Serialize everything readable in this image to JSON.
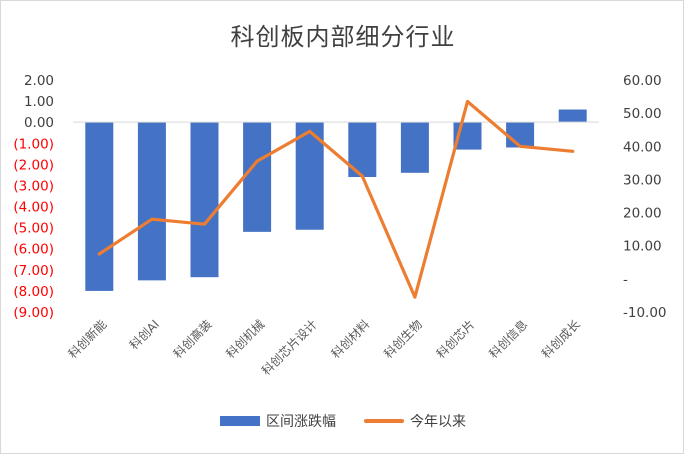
{
  "chart_data": {
    "type": "bar",
    "title": "科创板内部细分行业",
    "categories": [
      "科创新能",
      "科创AI",
      "科创高装",
      "科创机械",
      "科创芯片设计",
      "科创材料",
      "科创生物",
      "科创芯片",
      "科创信息",
      "科创成长"
    ],
    "series": [
      {
        "name": "区间涨跌幅",
        "type": "bar",
        "axis": "left",
        "color": "#4472c4",
        "values": [
          -8.0,
          -7.5,
          -7.35,
          -5.2,
          -5.1,
          -2.6,
          -2.4,
          -1.3,
          -1.2,
          0.6
        ]
      },
      {
        "name": "今年以来",
        "type": "line",
        "axis": "right",
        "color": "#ed7d31",
        "values": [
          7.5,
          18.0,
          16.5,
          35.5,
          44.5,
          31.0,
          -5.5,
          53.5,
          40.0,
          38.5
        ]
      }
    ],
    "y_left": {
      "ylim": [
        -9,
        2
      ],
      "ticks": [
        2,
        1,
        0,
        -1,
        -2,
        -3,
        -4,
        -5,
        -6,
        -7,
        -8,
        -9
      ],
      "tick_labels": [
        "2.00",
        "1.00",
        "0.00",
        "(1.00)",
        "(2.00)",
        "(3.00)",
        "(4.00)",
        "(5.00)",
        "(6.00)",
        "(7.00)",
        "(8.00)",
        "(9.00)"
      ],
      "negative_color": "#ff0000",
      "positive_color": "#404040"
    },
    "y_right": {
      "ylim": [
        -10,
        60
      ],
      "ticks": [
        60,
        50,
        40,
        30,
        20,
        10,
        0,
        -10
      ],
      "tick_labels": [
        "60.00",
        "50.00",
        "40.00",
        "30.00",
        "20.00",
        "10.00",
        "-",
        "-10.00"
      ],
      "color": "#404040"
    },
    "grid": false,
    "legend": "bottom"
  }
}
